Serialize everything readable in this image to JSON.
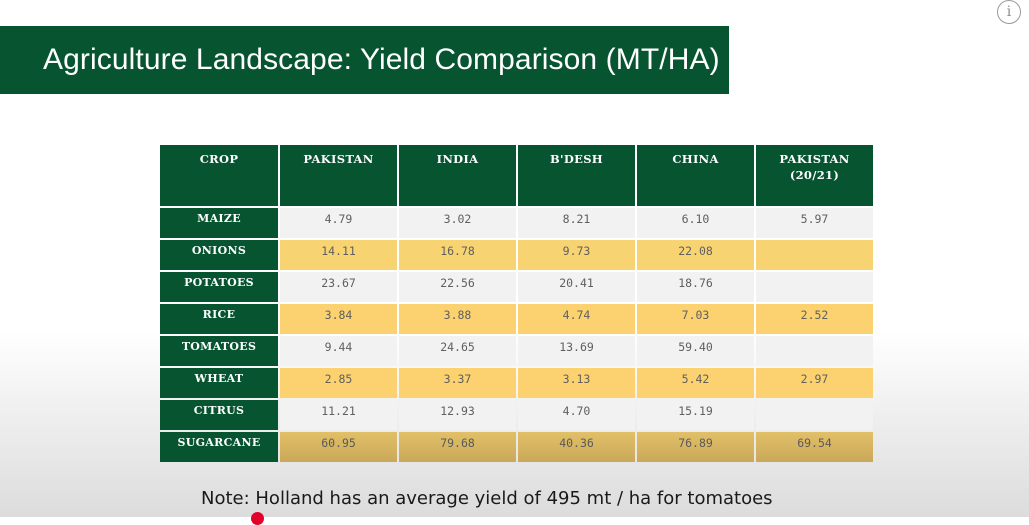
{
  "slide": {
    "title": "Agriculture Landscape: Yield Comparison (MT/HA)",
    "note": "Note: Holland has an average yield of 495 mt / ha for tomatoes"
  },
  "table": {
    "headers": [
      "CROP",
      "PAKISTAN",
      "INDIA",
      "B'DESH",
      "CHINA",
      "PAKISTAN\n(20/21)"
    ],
    "rows": [
      {
        "crop": "MAIZE",
        "values": [
          "4.79",
          "3.02",
          "8.21",
          "6.10",
          "5.97"
        ]
      },
      {
        "crop": "ONIONS",
        "values": [
          "14.11",
          "16.78",
          "9.73",
          "22.08",
          ""
        ]
      },
      {
        "crop": "POTATOES",
        "values": [
          "23.67",
          "22.56",
          "20.41",
          "18.76",
          ""
        ]
      },
      {
        "crop": "RICE",
        "values": [
          "3.84",
          "3.88",
          "4.74",
          "7.03",
          "2.52"
        ]
      },
      {
        "crop": "TOMATOES",
        "values": [
          "9.44",
          "24.65",
          "13.69",
          "59.40",
          ""
        ]
      },
      {
        "crop": "WHEAT",
        "values": [
          "2.85",
          "3.37",
          "3.13",
          "5.42",
          "2.97"
        ]
      },
      {
        "crop": "CITRUS",
        "values": [
          "11.21",
          "12.93",
          "4.70",
          "15.19",
          ""
        ]
      },
      {
        "crop": "SUGARCANE",
        "values": [
          "60.95",
          "79.68",
          "40.36",
          "76.89",
          "69.54"
        ]
      }
    ]
  },
  "colors": {
    "header_green": "#075530",
    "row_light": "#f2f2f2",
    "row_yellow": "#fbd26f",
    "row_gold": "#d4b35f"
  },
  "ui": {
    "info_icon": "info-icon",
    "info_glyph": "i"
  }
}
